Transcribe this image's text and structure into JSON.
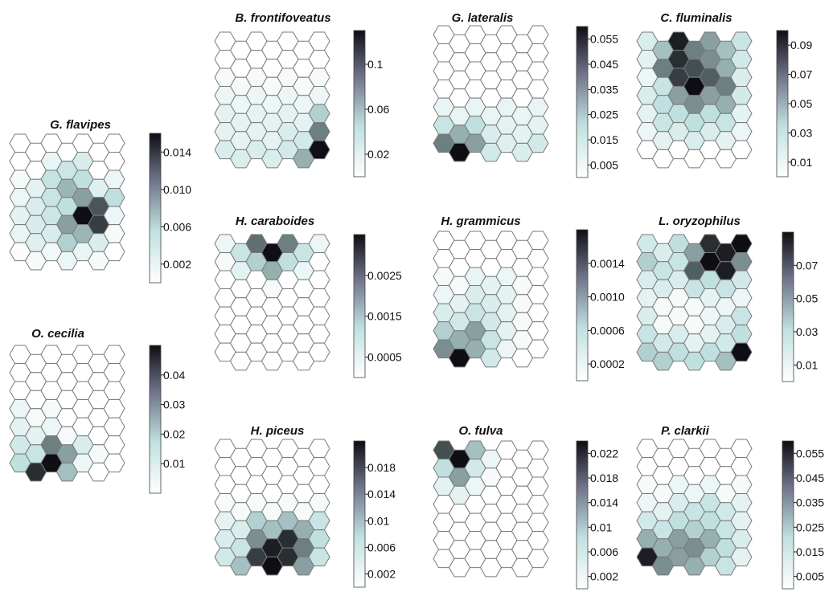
{
  "chart_data": {
    "type": "heatmap",
    "description_grid": "hexagonal self-organizing map, 7 columns x 7 rows per panel; intensity 0 (white) to 1 (black) relative to each panel's colour bar",
    "colors": {
      "low": "#ffffff",
      "mid": "#bfe0df",
      "high": "#0e0e14",
      "stroke": "#7a7a7a"
    },
    "panels": [
      {
        "title": "G. flavipes",
        "colorbar": {
          "min": 0,
          "max": 0.016,
          "ticks": [
            "0.002",
            "0.006",
            "0.010",
            "0.014"
          ],
          "tick_values": [
            0.002,
            0.006,
            0.01,
            0.014
          ]
        },
        "grid": [
          [
            0,
            0,
            0,
            0,
            0,
            0,
            0
          ],
          [
            0,
            0,
            0.12,
            0.28,
            0.22,
            0,
            0
          ],
          [
            0.05,
            0.15,
            0.32,
            0.48,
            0.35,
            0.18,
            0.1
          ],
          [
            0.1,
            0.2,
            0.3,
            0.35,
            0.55,
            0.78,
            0.35
          ],
          [
            0.15,
            0.22,
            0.28,
            0.55,
            1.0,
            0.85,
            0.1
          ],
          [
            0.12,
            0.18,
            0.22,
            0.4,
            0.48,
            0.2,
            0.05
          ],
          [
            0.02,
            0.05,
            0.08,
            0.1,
            0.12,
            0.05,
            0
          ]
        ]
      },
      {
        "title": "B. frontifoveatus",
        "colorbar": {
          "min": 0,
          "max": 0.13,
          "ticks": [
            "0.02",
            "0.06",
            "0.1"
          ],
          "tick_values": [
            0.02,
            0.06,
            0.1
          ]
        },
        "grid": [
          [
            0,
            0,
            0,
            0,
            0,
            0,
            0
          ],
          [
            0,
            0,
            0,
            0,
            0,
            0,
            0
          ],
          [
            0.05,
            0.05,
            0.05,
            0.05,
            0.05,
            0.05,
            0.05
          ],
          [
            0.1,
            0.1,
            0.1,
            0.1,
            0.1,
            0.1,
            0.1
          ],
          [
            0.15,
            0.15,
            0.15,
            0.15,
            0.15,
            0.15,
            0.4
          ],
          [
            0.15,
            0.15,
            0.15,
            0.15,
            0.2,
            0.25,
            0.65
          ],
          [
            0.2,
            0.2,
            0.2,
            0.2,
            0.25,
            0.5,
            1.0
          ]
        ]
      },
      {
        "title": "G. lateralis",
        "colorbar": {
          "min": 0,
          "max": 0.06,
          "ticks": [
            "0.005",
            "0.015",
            "0.025",
            "0.035",
            "0.045",
            "0.055"
          ],
          "tick_values": [
            0.005,
            0.015,
            0.025,
            0.035,
            0.045,
            0.055
          ]
        },
        "grid": [
          [
            0,
            0,
            0,
            0,
            0,
            0,
            0
          ],
          [
            0,
            0,
            0,
            0,
            0,
            0,
            0
          ],
          [
            0,
            0,
            0,
            0,
            0,
            0,
            0
          ],
          [
            0,
            0,
            0,
            0,
            0,
            0,
            0
          ],
          [
            0.12,
            0.12,
            0.12,
            0.12,
            0.12,
            0.12,
            0.12
          ],
          [
            0.3,
            0.5,
            0.35,
            0.2,
            0.15,
            0.15,
            0.15
          ],
          [
            0.65,
            1.0,
            0.55,
            0.25,
            0.18,
            0.2,
            0.25
          ]
        ]
      },
      {
        "title": "C. fluminalis",
        "colorbar": {
          "min": 0,
          "max": 0.1,
          "ticks": [
            "0.01",
            "0.03",
            "0.05",
            "0.07",
            "0.09"
          ],
          "tick_values": [
            0.01,
            0.03,
            0.05,
            0.07,
            0.09
          ]
        },
        "grid": [
          [
            0.2,
            0.45,
            0.95,
            0.65,
            0.55,
            0.45,
            0.3
          ],
          [
            0.15,
            0.65,
            0.9,
            0.8,
            0.6,
            0.5,
            0.25
          ],
          [
            0.1,
            0.3,
            0.85,
            1.0,
            0.75,
            0.65,
            0.2
          ],
          [
            0.2,
            0.35,
            0.55,
            0.6,
            0.55,
            0.5,
            0.25
          ],
          [
            0.15,
            0.3,
            0.35,
            0.35,
            0.35,
            0.3,
            0.15
          ],
          [
            0.1,
            0.15,
            0.2,
            0.2,
            0.2,
            0.15,
            0.1
          ],
          [
            0,
            0,
            0,
            0,
            0,
            0,
            0
          ]
        ]
      },
      {
        "title": "H. caraboides",
        "colorbar": {
          "min": 0,
          "max": 0.0035,
          "ticks": [
            "0.0005",
            "0.0015",
            "0.0025"
          ],
          "tick_values": [
            0.0005,
            0.0015,
            0.0025
          ]
        },
        "grid": [
          [
            0.1,
            0.3,
            0.7,
            1.0,
            0.65,
            0.3,
            0.1
          ],
          [
            0.05,
            0.15,
            0.4,
            0.5,
            0.35,
            0.1,
            0
          ],
          [
            0,
            0,
            0,
            0.05,
            0,
            0,
            0
          ],
          [
            0,
            0,
            0,
            0,
            0,
            0,
            0
          ],
          [
            0,
            0,
            0,
            0,
            0,
            0,
            0
          ],
          [
            0,
            0,
            0,
            0,
            0,
            0,
            0
          ],
          [
            0,
            0,
            0,
            0,
            0,
            0,
            0
          ]
        ]
      },
      {
        "title": "H. grammicus",
        "colorbar": {
          "min": 0,
          "max": 0.0018,
          "ticks": [
            "0.0002",
            "0.0006",
            "0.0010",
            "0.0014"
          ],
          "tick_values": [
            0.0002,
            0.0006,
            0.001,
            0.0014
          ]
        },
        "grid": [
          [
            0,
            0,
            0,
            0,
            0,
            0,
            0
          ],
          [
            0,
            0,
            0,
            0,
            0,
            0,
            0
          ],
          [
            0.05,
            0.05,
            0.12,
            0.15,
            0.1,
            0.05,
            0
          ],
          [
            0.1,
            0.15,
            0.2,
            0.2,
            0.15,
            0.05,
            0
          ],
          [
            0.2,
            0.25,
            0.3,
            0.25,
            0.15,
            0.05,
            0
          ],
          [
            0.4,
            0.5,
            0.55,
            0.3,
            0.15,
            0.05,
            0
          ],
          [
            0.6,
            1.0,
            0.5,
            0.25,
            0.1,
            0,
            0
          ]
        ]
      },
      {
        "title": "L. oryzophilus",
        "colorbar": {
          "min": 0,
          "max": 0.09,
          "ticks": [
            "0.01",
            "0.03",
            "0.05",
            "0.07"
          ],
          "tick_values": [
            0.01,
            0.03,
            0.05,
            0.07
          ]
        },
        "grid": [
          [
            0.25,
            0.2,
            0.35,
            0.55,
            0.9,
            0.95,
            1.0
          ],
          [
            0.4,
            0.3,
            0.3,
            0.75,
            1.0,
            0.95,
            0.6
          ],
          [
            0.2,
            0.2,
            0.2,
            0.3,
            0.35,
            0.3,
            0.25
          ],
          [
            0.15,
            0.05,
            0.05,
            0.05,
            0.15,
            0.1,
            0.1
          ],
          [
            0.2,
            0.05,
            0.05,
            0.05,
            0.1,
            0.2,
            0.3
          ],
          [
            0.3,
            0.25,
            0.2,
            0.15,
            0.15,
            0.25,
            0.35
          ],
          [
            0.4,
            0.4,
            0.35,
            0.35,
            0.35,
            0.45,
            1.0
          ]
        ]
      },
      {
        "title": "O. cecilia",
        "colorbar": {
          "min": 0,
          "max": 0.05,
          "ticks": [
            "0.01",
            "0.02",
            "0.03",
            "0.04"
          ],
          "tick_values": [
            0.01,
            0.02,
            0.03,
            0.04
          ]
        },
        "grid": [
          [
            0,
            0,
            0,
            0,
            0,
            0,
            0
          ],
          [
            0,
            0,
            0,
            0,
            0,
            0,
            0
          ],
          [
            0,
            0,
            0,
            0,
            0,
            0,
            0
          ],
          [
            0.1,
            0.05,
            0.05,
            0,
            0,
            0,
            0
          ],
          [
            0.15,
            0.15,
            0.1,
            0.05,
            0,
            0,
            0
          ],
          [
            0.25,
            0.3,
            0.65,
            0.55,
            0.2,
            0.05,
            0
          ],
          [
            0.35,
            0.9,
            1.0,
            0.45,
            0.1,
            0,
            0
          ]
        ]
      },
      {
        "title": "H. piceus",
        "colorbar": {
          "min": 0,
          "max": 0.022,
          "ticks": [
            "0.002",
            "0.006",
            "0.01",
            "0.014",
            "0.018"
          ],
          "tick_values": [
            0.002,
            0.006,
            0.01,
            0.014,
            0.018
          ]
        },
        "grid": [
          [
            0,
            0,
            0,
            0,
            0,
            0,
            0
          ],
          [
            0,
            0,
            0,
            0,
            0,
            0,
            0
          ],
          [
            0,
            0,
            0,
            0,
            0,
            0,
            0
          ],
          [
            0.05,
            0.05,
            0.05,
            0.05,
            0.05,
            0.05,
            0.05
          ],
          [
            0.15,
            0.2,
            0.4,
            0.45,
            0.45,
            0.5,
            0.3
          ],
          [
            0.2,
            0.3,
            0.6,
            0.95,
            0.9,
            0.65,
            0.35
          ],
          [
            0.25,
            0.45,
            0.85,
            1.0,
            0.9,
            0.55,
            0.3
          ]
        ]
      },
      {
        "title": "O. fulva",
        "colorbar": {
          "min": 0,
          "max": 0.024,
          "ticks": [
            "0.002",
            "0.006",
            "0.01",
            "0.014",
            "0.018",
            "0.022"
          ],
          "tick_values": [
            0.002,
            0.006,
            0.01,
            0.014,
            0.018,
            0.022
          ]
        },
        "grid": [
          [
            0.8,
            1.0,
            0.45,
            0.1,
            0,
            0,
            0
          ],
          [
            0.35,
            0.55,
            0.25,
            0.05,
            0,
            0,
            0
          ],
          [
            0.15,
            0.15,
            0.1,
            0,
            0,
            0,
            0
          ],
          [
            0,
            0,
            0,
            0,
            0,
            0,
            0
          ],
          [
            0,
            0,
            0,
            0,
            0,
            0,
            0
          ],
          [
            0,
            0,
            0,
            0,
            0,
            0,
            0
          ],
          [
            0,
            0,
            0,
            0,
            0,
            0,
            0
          ]
        ]
      },
      {
        "title": "P. clarkii",
        "colorbar": {
          "min": 0,
          "max": 0.06,
          "ticks": [
            "0.005",
            "0.015",
            "0.025",
            "0.035",
            "0.045",
            "0.055"
          ],
          "tick_values": [
            0.005,
            0.015,
            0.025,
            0.035,
            0.045,
            0.055
          ]
        },
        "grid": [
          [
            0,
            0,
            0,
            0,
            0,
            0,
            0
          ],
          [
            0,
            0,
            0,
            0,
            0,
            0,
            0
          ],
          [
            0.05,
            0.05,
            0.1,
            0.1,
            0.1,
            0.05,
            0.05
          ],
          [
            0.1,
            0.15,
            0.2,
            0.3,
            0.3,
            0.25,
            0.15
          ],
          [
            0.25,
            0.3,
            0.35,
            0.4,
            0.35,
            0.3,
            0.15
          ],
          [
            0.5,
            0.5,
            0.55,
            0.6,
            0.5,
            0.35,
            0.2
          ],
          [
            0.95,
            0.6,
            0.55,
            0.5,
            0.4,
            0.3,
            0.15
          ]
        ]
      }
    ]
  }
}
